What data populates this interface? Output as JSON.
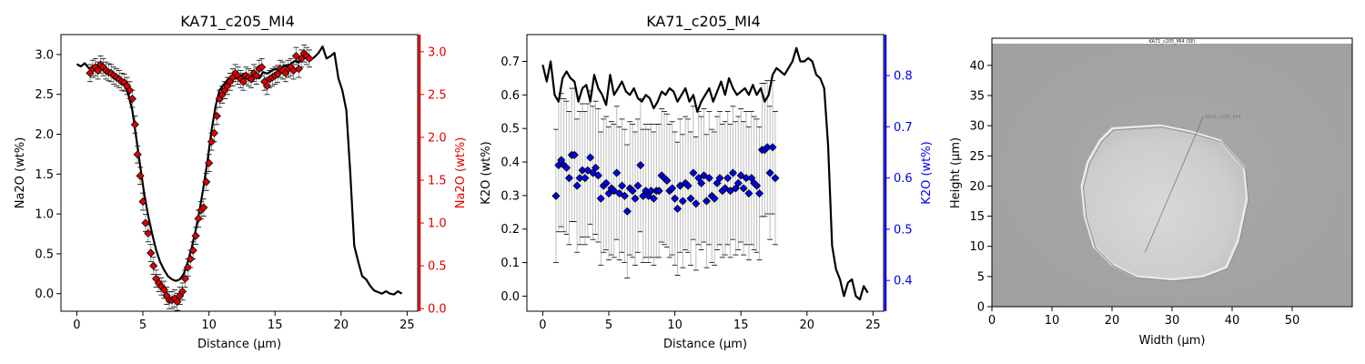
{
  "colors": {
    "black": "#000000",
    "red": "#e00000",
    "blue": "#0000ee",
    "errbar": "#c0c0c0"
  },
  "chart_data": [
    {
      "type": "line",
      "title": "KA71_c205_MI4",
      "xlabel": "Distance (µm)",
      "ylabel": "Na2O (wt%)",
      "ylabel_right": "Na2O (wt%)",
      "xlim": [
        -1.2,
        25.8
      ],
      "ylim": [
        -0.22,
        3.25
      ],
      "ylim_right": [
        -0.03,
        3.2
      ],
      "xticks": [
        "0",
        "5",
        "10",
        "15",
        "20",
        "25"
      ],
      "yticks": [
        "0.0",
        "0.5",
        "1.0",
        "1.5",
        "2.0",
        "2.5",
        "3.0"
      ],
      "yticks_right": [
        "0.0",
        "0.5",
        "1.0",
        "1.5",
        "2.0",
        "2.5",
        "3.0"
      ],
      "line_x": [
        0,
        0.3,
        0.6,
        0.9,
        1.2,
        1.5,
        1.8,
        2.1,
        2.4,
        2.7,
        3.0,
        3.3,
        3.6,
        3.9,
        4.2,
        4.5,
        4.8,
        5.1,
        5.4,
        5.7,
        6.0,
        6.3,
        6.6,
        6.9,
        7.2,
        7.5,
        7.8,
        8.1,
        8.4,
        8.7,
        9.0,
        9.3,
        9.6,
        9.9,
        10.2,
        10.5,
        10.8,
        11.1,
        11.4,
        11.7,
        12.0,
        12.3,
        12.6,
        12.9,
        13.2,
        13.5,
        13.8,
        14.1,
        14.4,
        14.7,
        15.0,
        15.3,
        15.6,
        15.9,
        16.2,
        16.5,
        16.8,
        17.1,
        17.4,
        17.7,
        18.0,
        18.3,
        18.6,
        18.9,
        19.2,
        19.5,
        19.8,
        20.1,
        20.4,
        20.7,
        21.0,
        21.3,
        21.6,
        21.9,
        22.2,
        22.5,
        22.8,
        23.1,
        23.4,
        23.7,
        24.0,
        24.3,
        24.6
      ],
      "line_y": [
        2.88,
        2.85,
        2.89,
        2.83,
        2.8,
        2.82,
        2.86,
        2.8,
        2.78,
        2.75,
        2.72,
        2.68,
        2.62,
        2.5,
        2.3,
        1.95,
        1.6,
        1.25,
        0.98,
        0.75,
        0.55,
        0.4,
        0.3,
        0.22,
        0.18,
        0.16,
        0.18,
        0.25,
        0.4,
        0.58,
        0.8,
        1.05,
        1.35,
        1.68,
        2.05,
        2.35,
        2.55,
        2.62,
        2.68,
        2.72,
        2.7,
        2.72,
        2.75,
        2.7,
        2.73,
        2.75,
        2.7,
        2.78,
        2.76,
        2.79,
        2.82,
        2.8,
        2.85,
        2.86,
        2.88,
        2.92,
        2.9,
        2.95,
        2.98,
        2.93,
        2.97,
        3.02,
        3.1,
        2.95,
        2.98,
        3.02,
        2.7,
        2.55,
        2.3,
        1.5,
        0.6,
        0.4,
        0.22,
        0.18,
        0.1,
        0.04,
        0.02,
        0.0,
        0.03,
        0.0,
        -0.01,
        0.03,
        0.0
      ],
      "points_x": [
        1.0,
        1.2,
        1.4,
        1.6,
        1.8,
        2.0,
        2.2,
        2.4,
        2.6,
        2.8,
        3.0,
        3.2,
        3.4,
        3.6,
        3.8,
        4.0,
        4.2,
        4.4,
        4.6,
        4.8,
        5.0,
        5.2,
        5.4,
        5.6,
        5.8,
        6.0,
        6.2,
        6.4,
        6.6,
        6.8,
        7.0,
        7.2,
        7.4,
        7.6,
        7.8,
        8.0,
        8.2,
        8.4,
        8.6,
        8.8,
        9.0,
        9.2,
        9.4,
        9.6,
        9.8,
        10.0,
        10.2,
        10.4,
        10.6,
        10.8,
        11.0,
        11.2,
        11.4,
        11.6,
        11.8,
        12.0,
        12.2,
        12.4,
        12.6,
        12.8,
        13.0,
        13.2,
        13.4,
        13.6,
        13.8,
        14.0,
        14.2,
        14.4,
        14.6,
        14.8,
        15.0,
        15.2,
        15.4,
        15.6,
        15.8,
        16.0,
        16.2,
        16.4,
        16.6,
        16.8,
        17.0,
        17.2,
        17.4,
        17.6
      ],
      "points_y": [
        2.75,
        2.8,
        2.82,
        2.78,
        2.85,
        2.82,
        2.78,
        2.76,
        2.75,
        2.72,
        2.7,
        2.68,
        2.65,
        2.64,
        2.6,
        2.55,
        2.45,
        2.15,
        1.8,
        1.55,
        1.25,
        1.0,
        0.88,
        0.65,
        0.5,
        0.35,
        0.3,
        0.26,
        0.22,
        0.15,
        0.1,
        0.1,
        0.12,
        0.08,
        0.15,
        0.2,
        0.35,
        0.48,
        0.58,
        0.68,
        0.85,
        1.05,
        1.15,
        1.18,
        1.48,
        1.7,
        1.95,
        2.05,
        2.25,
        2.45,
        2.5,
        2.55,
        2.6,
        2.65,
        2.7,
        2.75,
        2.72,
        2.68,
        2.65,
        2.72,
        2.7,
        2.68,
        2.75,
        2.72,
        2.8,
        2.82,
        2.65,
        2.6,
        2.68,
        2.7,
        2.72,
        2.74,
        2.8,
        2.78,
        2.75,
        2.8,
        2.82,
        2.78,
        2.95,
        2.8,
        2.92,
        2.98,
        2.95,
        2.92
      ],
      "err_half": 0.1,
      "series": [
        {
          "name": "",
          "style": "line",
          "color": "#000000"
        },
        {
          "name": "",
          "style": "markers",
          "color": "#e00000",
          "axis": "right"
        }
      ]
    },
    {
      "type": "line",
      "title": "KA71_c205_MI4",
      "xlabel": "Distance (µm)",
      "ylabel": "K2O (wt%)",
      "ylabel_right": "K2O (wt%)",
      "xlim": [
        -1.2,
        25.8
      ],
      "ylim": [
        -0.045,
        0.78
      ],
      "ylim_right": [
        0.34,
        0.88
      ],
      "xticks": [
        "0",
        "5",
        "10",
        "15",
        "20",
        "25"
      ],
      "yticks": [
        "0.0",
        "0.1",
        "0.2",
        "0.3",
        "0.4",
        "0.5",
        "0.6",
        "0.7"
      ],
      "yticks_right": [
        "0.4",
        "0.5",
        "0.6",
        "0.7",
        "0.8"
      ],
      "line_x": [
        0,
        0.3,
        0.6,
        0.9,
        1.2,
        1.5,
        1.8,
        2.1,
        2.4,
        2.7,
        3.0,
        3.3,
        3.6,
        3.9,
        4.2,
        4.5,
        4.8,
        5.1,
        5.4,
        5.7,
        6.0,
        6.3,
        6.6,
        6.9,
        7.2,
        7.5,
        7.8,
        8.1,
        8.4,
        8.7,
        9.0,
        9.3,
        9.6,
        9.9,
        10.2,
        10.5,
        10.8,
        11.1,
        11.4,
        11.7,
        12.0,
        12.3,
        12.6,
        12.9,
        13.2,
        13.5,
        13.8,
        14.1,
        14.4,
        14.7,
        15.0,
        15.3,
        15.6,
        15.9,
        16.2,
        16.5,
        16.8,
        17.1,
        17.4,
        17.7,
        18.0,
        18.3,
        18.6,
        18.9,
        19.2,
        19.5,
        19.8,
        20.1,
        20.4,
        20.7,
        21.0,
        21.3,
        21.6,
        21.9,
        22.2,
        22.5,
        22.8,
        23.1,
        23.4,
        23.7,
        24.0,
        24.3,
        24.6
      ],
      "line_y": [
        0.69,
        0.64,
        0.7,
        0.6,
        0.58,
        0.65,
        0.67,
        0.65,
        0.64,
        0.58,
        0.62,
        0.63,
        0.58,
        0.66,
        0.62,
        0.6,
        0.57,
        0.66,
        0.6,
        0.62,
        0.64,
        0.61,
        0.6,
        0.62,
        0.59,
        0.58,
        0.6,
        0.59,
        0.56,
        0.58,
        0.61,
        0.6,
        0.62,
        0.61,
        0.58,
        0.6,
        0.62,
        0.58,
        0.6,
        0.55,
        0.58,
        0.6,
        0.62,
        0.58,
        0.61,
        0.64,
        0.6,
        0.65,
        0.62,
        0.6,
        0.61,
        0.62,
        0.6,
        0.63,
        0.6,
        0.62,
        0.58,
        0.6,
        0.66,
        0.68,
        0.67,
        0.66,
        0.68,
        0.7,
        0.74,
        0.7,
        0.7,
        0.71,
        0.7,
        0.66,
        0.65,
        0.62,
        0.45,
        0.15,
        0.08,
        0.05,
        0.0,
        0.04,
        0.05,
        0.0,
        -0.01,
        0.03,
        0.01
      ],
      "points_x": [
        1.0,
        1.2,
        1.4,
        1.6,
        1.8,
        2.0,
        2.2,
        2.4,
        2.6,
        2.8,
        3.0,
        3.2,
        3.4,
        3.6,
        3.8,
        4.0,
        4.2,
        4.4,
        4.6,
        4.8,
        5.0,
        5.2,
        5.4,
        5.6,
        5.8,
        6.0,
        6.2,
        6.4,
        6.6,
        6.8,
        7.0,
        7.2,
        7.4,
        7.6,
        7.8,
        8.0,
        8.2,
        8.4,
        8.6,
        8.8,
        9.0,
        9.2,
        9.4,
        9.6,
        9.8,
        10.0,
        10.2,
        10.4,
        10.6,
        10.8,
        11.0,
        11.2,
        11.4,
        11.6,
        11.8,
        12.0,
        12.2,
        12.4,
        12.6,
        12.8,
        13.0,
        13.2,
        13.4,
        13.6,
        13.8,
        14.0,
        14.2,
        14.4,
        14.6,
        14.8,
        15.0,
        15.2,
        15.4,
        15.6,
        15.8,
        16.0,
        16.2,
        16.4,
        16.6,
        16.8,
        17.0,
        17.2,
        17.4,
        17.6
      ],
      "points_y": [
        0.565,
        0.625,
        0.635,
        0.625,
        0.62,
        0.6,
        0.645,
        0.645,
        0.585,
        0.6,
        0.615,
        0.6,
        0.615,
        0.64,
        0.61,
        0.62,
        0.605,
        0.56,
        0.585,
        0.59,
        0.57,
        0.58,
        0.575,
        0.61,
        0.57,
        0.585,
        0.565,
        0.535,
        0.58,
        0.575,
        0.56,
        0.585,
        0.625,
        0.565,
        0.575,
        0.565,
        0.575,
        0.56,
        0.575,
        0.575,
        0.605,
        0.6,
        0.595,
        0.575,
        0.58,
        0.56,
        0.54,
        0.585,
        0.555,
        0.59,
        0.585,
        0.56,
        0.61,
        0.55,
        0.6,
        0.59,
        0.605,
        0.555,
        0.6,
        0.565,
        0.56,
        0.59,
        0.6,
        0.575,
        0.58,
        0.6,
        0.575,
        0.61,
        0.58,
        0.59,
        0.605,
        0.58,
        0.6,
        0.57,
        0.6,
        0.59,
        0.585,
        0.57,
        0.655,
        0.655,
        0.66,
        0.61,
        0.66,
        0.6
      ],
      "err_half": 0.13,
      "series": [
        {
          "name": "",
          "style": "line",
          "color": "#000000"
        },
        {
          "name": "",
          "style": "markers",
          "color": "#0000ee",
          "axis": "right"
        }
      ]
    },
    {
      "type": "image",
      "title": "",
      "xlabel": "Width (µm)",
      "ylabel": "Height (µm)",
      "xlim": [
        0,
        60
      ],
      "ylim": [
        0,
        44.5
      ],
      "xticks": [
        "0",
        "10",
        "20",
        "30",
        "40",
        "50"
      ],
      "yticks": [
        "0",
        "5",
        "10",
        "15",
        "20",
        "25",
        "30",
        "35",
        "40"
      ],
      "image_header": "KA71_c205_MI4 (SE)",
      "line_label": "KA71_c205_MI4",
      "outline_x": [
        20,
        28,
        33,
        38,
        42,
        42.5,
        41,
        39,
        35,
        30,
        24,
        20,
        17,
        15.5,
        15,
        16,
        18,
        20
      ],
      "outline_y": [
        29.5,
        30,
        29,
        27.5,
        23,
        18,
        11,
        6.5,
        5,
        4.5,
        5,
        7,
        10,
        15,
        20,
        24,
        27.5,
        29.5
      ],
      "traverse_x": [
        25.5,
        35.2
      ],
      "traverse_y": [
        9,
        31.5
      ]
    }
  ]
}
